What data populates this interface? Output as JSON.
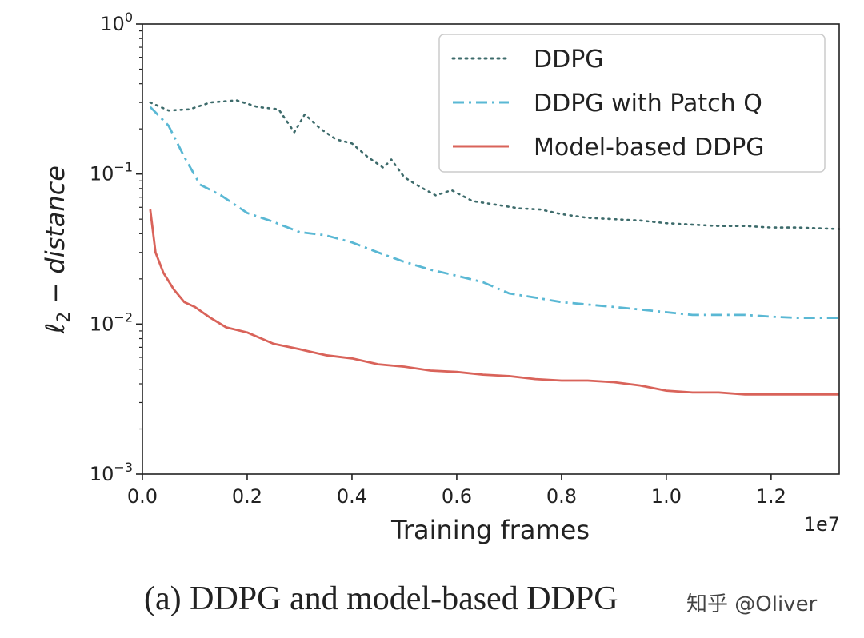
{
  "chart_data": {
    "type": "line",
    "xlabel_text": "Training frames",
    "ylabel_main": "ℓ",
    "ylabel_sub": "2",
    "ylabel_rest": " − distance",
    "x_offset_label": "1e7",
    "xlim": [
      0,
      13300000
    ],
    "ylim": [
      0.001,
      1
    ],
    "yscale": "log",
    "x_tick_values": [
      0,
      2000000,
      4000000,
      6000000,
      8000000,
      10000000,
      12000000
    ],
    "x_ticks": [
      "0.0",
      "0.2",
      "0.4",
      "0.6",
      "0.8",
      "1.0",
      "1.2"
    ],
    "y_ticks": [
      {
        "value": 1,
        "base": "10",
        "exp": "0"
      },
      {
        "value": 0.1,
        "base": "10",
        "exp": "−1"
      },
      {
        "value": 0.01,
        "base": "10",
        "exp": "−2"
      },
      {
        "value": 0.001,
        "base": "10",
        "exp": "−3"
      }
    ],
    "legend_position": "top-right",
    "series": [
      {
        "name": "DDPG",
        "style": "dotted",
        "color": "#3d6b6b",
        "x": [
          150000,
          500000,
          900000,
          1300000,
          1800000,
          2200000,
          2600000,
          2900000,
          3100000,
          3400000,
          3700000,
          4000000,
          4300000,
          4600000,
          4750000,
          5000000,
          5300000,
          5600000,
          5900000,
          6300000,
          6800000,
          7200000,
          7600000,
          8000000,
          8500000,
          9000000,
          9500000,
          10000000,
          10500000,
          11000000,
          11500000,
          12000000,
          12500000,
          13300000
        ],
        "y": [
          0.3,
          0.265,
          0.27,
          0.3,
          0.31,
          0.28,
          0.27,
          0.19,
          0.25,
          0.2,
          0.17,
          0.16,
          0.13,
          0.11,
          0.125,
          0.095,
          0.082,
          0.072,
          0.078,
          0.066,
          0.062,
          0.059,
          0.058,
          0.054,
          0.051,
          0.05,
          0.049,
          0.047,
          0.046,
          0.045,
          0.045,
          0.044,
          0.044,
          0.043
        ]
      },
      {
        "name": "DDPG with Patch Q",
        "style": "dashdot",
        "color": "#5ab8d4",
        "x": [
          150000,
          500000,
          800000,
          1100000,
          1500000,
          2000000,
          2500000,
          3000000,
          3500000,
          4000000,
          4500000,
          5000000,
          5500000,
          6000000,
          6500000,
          7000000,
          7500000,
          8000000,
          8500000,
          9000000,
          9500000,
          10000000,
          10500000,
          11000000,
          11500000,
          12000000,
          12500000,
          13300000
        ],
        "y": [
          0.28,
          0.21,
          0.13,
          0.085,
          0.072,
          0.055,
          0.048,
          0.041,
          0.039,
          0.035,
          0.03,
          0.026,
          0.023,
          0.021,
          0.019,
          0.016,
          0.015,
          0.014,
          0.0135,
          0.013,
          0.0125,
          0.012,
          0.0115,
          0.0115,
          0.0115,
          0.0112,
          0.011,
          0.011
        ]
      },
      {
        "name": "Model-based DDPG",
        "style": "solid",
        "color": "#d9635a",
        "x": [
          150000,
          250000,
          400000,
          600000,
          800000,
          1000000,
          1300000,
          1600000,
          2000000,
          2500000,
          3000000,
          3500000,
          4000000,
          4500000,
          5000000,
          5500000,
          6000000,
          6500000,
          7000000,
          7500000,
          8000000,
          8500000,
          9000000,
          9500000,
          10000000,
          10500000,
          11000000,
          11500000,
          12000000,
          12500000,
          13300000
        ],
        "y": [
          0.058,
          0.03,
          0.022,
          0.017,
          0.014,
          0.013,
          0.011,
          0.0095,
          0.0088,
          0.0074,
          0.0068,
          0.0062,
          0.0059,
          0.0054,
          0.0052,
          0.0049,
          0.0048,
          0.0046,
          0.0045,
          0.0043,
          0.0042,
          0.0042,
          0.0041,
          0.0039,
          0.0036,
          0.0035,
          0.0035,
          0.0034,
          0.0034,
          0.0034,
          0.0034
        ]
      }
    ]
  },
  "caption": "(a) DDPG and model-based DDPG",
  "watermark": "知乎 @Oliver"
}
